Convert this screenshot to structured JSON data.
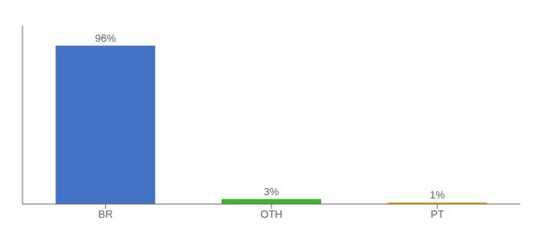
{
  "chart_data": {
    "type": "bar",
    "categories": [
      "BR",
      "OTH",
      "PT"
    ],
    "values": [
      96,
      3,
      1
    ],
    "value_labels": [
      "96%",
      "3%",
      "1%"
    ],
    "colors": [
      "#4472c4",
      "#3cb527",
      "#f0a500"
    ],
    "ylim": [
      0,
      108
    ],
    "data_labels": true,
    "tick_labels": "x",
    "grid": false
  }
}
